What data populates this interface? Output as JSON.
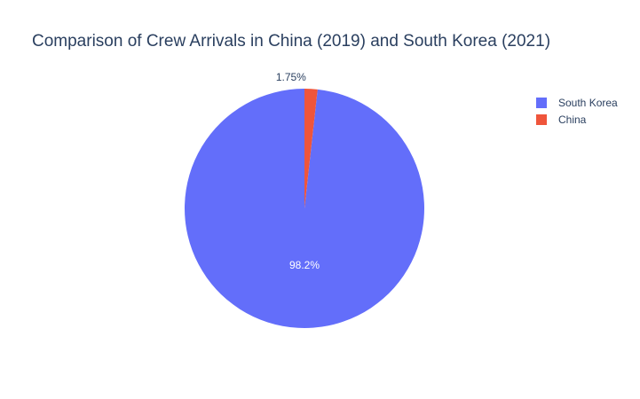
{
  "chart_data": {
    "type": "pie",
    "title": "Comparison of Crew Arrivals in China (2019) and South Korea (2021)",
    "slices": [
      {
        "label": "South Korea",
        "percent": 98.25,
        "display": "98.2%",
        "color": "#636efa",
        "label_color": "#ffffff",
        "label_position": "inside"
      },
      {
        "label": "China",
        "percent": 1.75,
        "display": "1.75%",
        "color": "#ef553b",
        "label_color": "#2a3f5f",
        "label_position": "outside"
      }
    ],
    "legend": {
      "placement": "top-right",
      "entries": [
        "South Korea",
        "China"
      ]
    },
    "start_angle_deg": 0,
    "direction": "counterclockwise"
  }
}
